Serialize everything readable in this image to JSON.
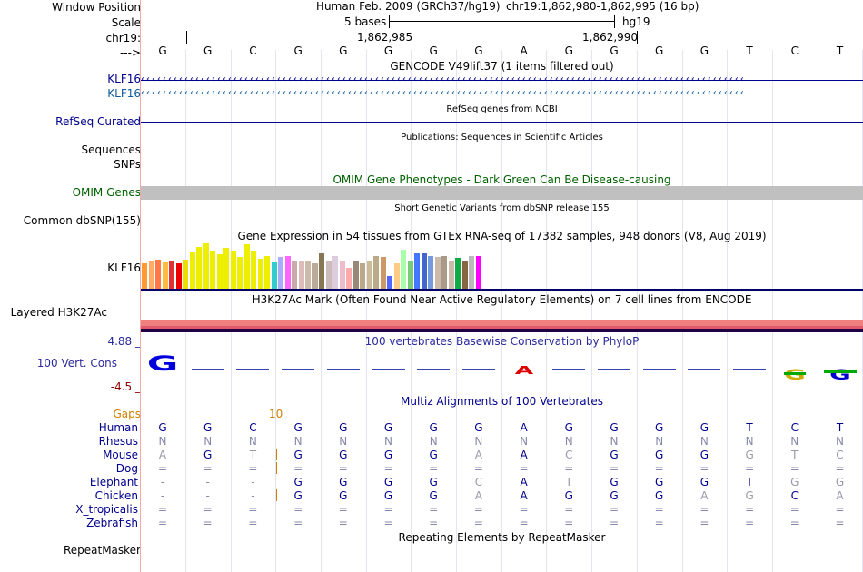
{
  "colors": {
    "navy": "#00008c",
    "teal": "#0e5a9c",
    "darkred": "#8c0000",
    "green": "#006000",
    "orange": "#d08000"
  },
  "labels": {
    "window_position": "Window Position",
    "scale": "Scale",
    "chr": "chr19:",
    "arrow": "--->",
    "klf16_a": "KLF16",
    "klf16_b": "KLF16",
    "refseq": "RefSeq Curated",
    "sequences": "Sequences",
    "snps": "SNPs",
    "omim": "OMIM Genes",
    "common_dbsnp": "Common dbSNP(155)",
    "gtex_gene": "KLF16",
    "h3k27ac": "Layered H3K27Ac",
    "cons_max": "4.88 _",
    "cons_label": "100 Vert. Cons",
    "cons_min": "-4.5 _",
    "gaps": "Gaps",
    "repeatmasker": "RepeatMasker"
  },
  "header": {
    "assembly": "Human Feb. 2009 (GRCh37/hg19)",
    "position": "chr19:1,862,980-1,862,995 (16 bp)",
    "scale_text": "5 bases",
    "db": "hg19",
    "coord_1": "1,862,985",
    "coord_2": "1,862,990"
  },
  "bases": [
    "G",
    "G",
    "C",
    "G",
    "G",
    "G",
    "G",
    "G",
    "A",
    "G",
    "G",
    "G",
    "G",
    "T",
    "C",
    "T"
  ],
  "tracks": {
    "gencode": "GENCODE V49lift37 (1 items filtered out)",
    "refseq": "RefSeq genes from NCBI",
    "publications": "Publications: Sequences in Scientific Articles",
    "omim": "OMIM Gene Phenotypes - Dark Green Can Be Disease-causing",
    "dbsnp": "Short Genetic Variants from dbSNP release 155",
    "gtex": "Gene Expression in 54 tissues from GTEx RNA-seq of 17382 samples, 948 donors (V8, Aug 2019)",
    "h3k27ac": "H3K27Ac Mark (Often Found Near Active Regulatory Elements) on 7 cell lines from ENCODE",
    "phylop": "100 vertebrates Basewise Conservation by PhyloP",
    "multiz": "Multiz Alignments of 100 Vertebrates",
    "repeatmasker": "Repeating Elements by RepeatMasker"
  },
  "gtex_bars": [
    {
      "v": 0.55,
      "c": "#ff9933"
    },
    {
      "v": 0.62,
      "c": "#ffaa66"
    },
    {
      "v": 0.63,
      "c": "#ff7744"
    },
    {
      "v": 0.58,
      "c": "#ffbb44"
    },
    {
      "v": 0.62,
      "c": "#dd3333"
    },
    {
      "v": 0.55,
      "c": "#ee0000"
    },
    {
      "v": 0.64,
      "c": "#eedd00"
    },
    {
      "v": 0.8,
      "c": "#eeee00"
    },
    {
      "v": 0.92,
      "c": "#eeee00"
    },
    {
      "v": 1.0,
      "c": "#eeee00"
    },
    {
      "v": 0.82,
      "c": "#eeee00"
    },
    {
      "v": 0.75,
      "c": "#eeee00"
    },
    {
      "v": 0.9,
      "c": "#eeee00"
    },
    {
      "v": 0.82,
      "c": "#eeee00"
    },
    {
      "v": 0.7,
      "c": "#eeee00"
    },
    {
      "v": 0.97,
      "c": "#eeee00"
    },
    {
      "v": 0.82,
      "c": "#eeee00"
    },
    {
      "v": 0.65,
      "c": "#eeee00"
    },
    {
      "v": 0.72,
      "c": "#eeee00"
    },
    {
      "v": 0.58,
      "c": "#33cccc"
    },
    {
      "v": 0.7,
      "c": "#aaaaff"
    },
    {
      "v": 0.72,
      "c": "#ff66ff"
    },
    {
      "v": 0.6,
      "c": "#ccaaaa"
    },
    {
      "v": 0.6,
      "c": "#ddbbbb"
    },
    {
      "v": 0.6,
      "c": "#ccbbaa"
    },
    {
      "v": 0.55,
      "c": "#bbaa99"
    },
    {
      "v": 0.77,
      "c": "#887755"
    },
    {
      "v": 0.6,
      "c": "#ccbbbb"
    },
    {
      "v": 0.72,
      "c": "#ddccdd"
    },
    {
      "v": 0.6,
      "c": "#eebbcc"
    },
    {
      "v": 0.45,
      "c": "#ffaaaa"
    },
    {
      "v": 0.6,
      "c": "#998877"
    },
    {
      "v": 0.55,
      "c": "#bbaa88"
    },
    {
      "v": 0.62,
      "c": "#ccbb99"
    },
    {
      "v": 0.72,
      "c": "#bbaa88"
    },
    {
      "v": 0.7,
      "c": "#cc9966"
    },
    {
      "v": 0.28,
      "c": "#5566ff"
    },
    {
      "v": 0.55,
      "c": "#ffcc88"
    },
    {
      "v": 0.85,
      "c": "#aaffaa"
    },
    {
      "v": 0.62,
      "c": "#77cc77"
    },
    {
      "v": 0.77,
      "c": "#4477ff"
    },
    {
      "v": 0.77,
      "c": "#4466cc"
    },
    {
      "v": 0.72,
      "c": "#7799dd"
    },
    {
      "v": 0.7,
      "c": "#ccbbaa"
    },
    {
      "v": 0.72,
      "c": "#aa9988"
    },
    {
      "v": 0.6,
      "c": "#ccbbaa"
    },
    {
      "v": 0.68,
      "c": "#11aa44"
    },
    {
      "v": 0.6,
      "c": "#886644"
    },
    {
      "v": 0.72,
      "c": "#bbbbbb"
    },
    {
      "v": 0.72,
      "c": "#ff00ff"
    }
  ],
  "phylop_bases": [
    "G",
    "-",
    "-",
    "-",
    "-",
    "-",
    "-",
    "-",
    "A",
    "-",
    "-",
    "-",
    "-",
    "-",
    "G",
    "G"
  ],
  "gaps_value": "10",
  "species": [
    {
      "name": "Human",
      "seq": [
        "G",
        "G",
        "C",
        "G",
        "G",
        "G",
        "G",
        "G",
        "A",
        "G",
        "G",
        "G",
        "G",
        "T",
        "C",
        "T"
      ]
    },
    {
      "name": "Rhesus",
      "seq": [
        "N",
        "N",
        "N",
        "N",
        "N",
        "N",
        "N",
        "N",
        "N",
        "N",
        "N",
        "N",
        "N",
        "N",
        "N",
        "N"
      ]
    },
    {
      "name": "Mouse",
      "seq": [
        "A",
        "G",
        "T",
        "G",
        "G",
        "G",
        "G",
        "A",
        "A",
        "C",
        "G",
        "G",
        "G",
        "G",
        "T",
        "C"
      ]
    },
    {
      "name": "Dog",
      "seq": [
        "=",
        "=",
        "=",
        "=",
        "=",
        "=",
        "=",
        "=",
        "=",
        "=",
        "=",
        "=",
        "=",
        "=",
        "=",
        "="
      ]
    },
    {
      "name": "Elephant",
      "seq": [
        "-",
        "-",
        "-",
        "G",
        "G",
        "G",
        "G",
        "C",
        "A",
        "T",
        "G",
        "G",
        "G",
        "T",
        "G",
        "G"
      ]
    },
    {
      "name": "Chicken",
      "seq": [
        "-",
        "-",
        "-",
        "G",
        "G",
        "G",
        "G",
        "A",
        "A",
        "G",
        "G",
        "G",
        "A",
        "G",
        "C",
        "A"
      ]
    },
    {
      "name": "X_tropicalis",
      "seq": [
        "=",
        "=",
        "=",
        "=",
        "=",
        "=",
        "=",
        "=",
        "=",
        "=",
        "=",
        "=",
        "=",
        "=",
        "=",
        "="
      ]
    },
    {
      "name": "Zebrafish",
      "seq": [
        "=",
        "=",
        "=",
        "=",
        "=",
        "=",
        "=",
        "=",
        "=",
        "=",
        "=",
        "=",
        "=",
        "=",
        "=",
        "="
      ]
    }
  ]
}
